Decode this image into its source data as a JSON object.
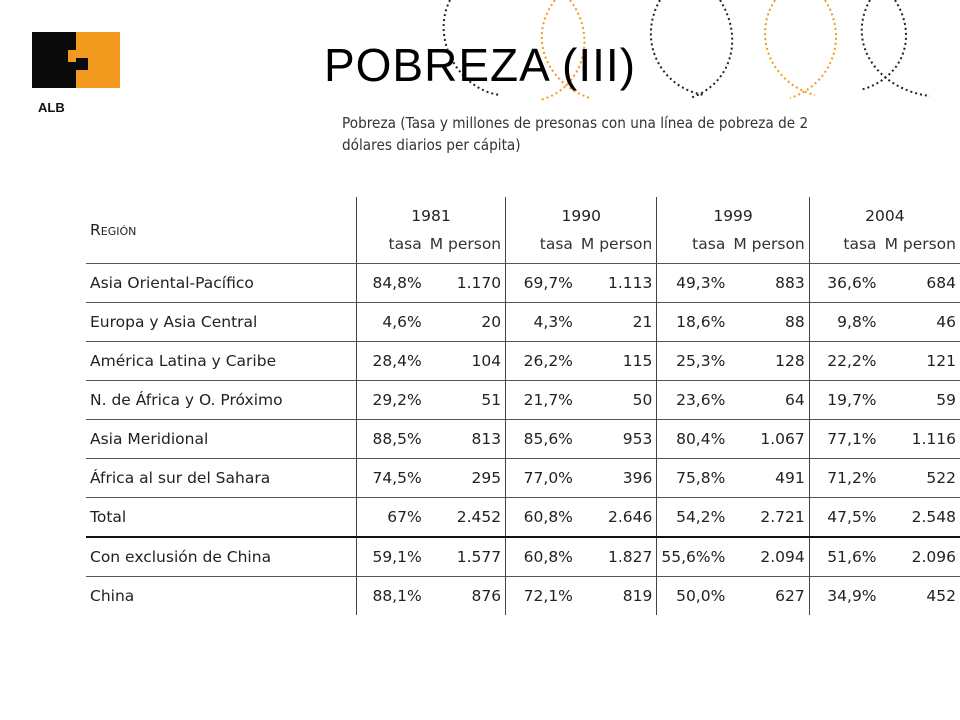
{
  "logo": {
    "label": "ALB",
    "colors": {
      "dark": "#0a0a0a",
      "accent": "#f29a1e"
    }
  },
  "title": "POBREZA (III)",
  "table_caption": "Pobreza (Tasa y millones de presonas con una línea de pobreza de 2 dólares diarios per cápita)",
  "table": {
    "region_header": "Región",
    "years": [
      "1981",
      "1990",
      "1999",
      "2004"
    ],
    "sub_headers": [
      "tasa",
      "M person"
    ],
    "rows": [
      {
        "region": "Asia Oriental-Pacífico",
        "values": [
          "84,8%",
          "1.170",
          "69,7%",
          "1.113",
          "49,3%",
          "883",
          "36,6%",
          "684"
        ]
      },
      {
        "region": "Europa y Asia Central",
        "values": [
          "4,6%",
          "20",
          "4,3%",
          "21",
          "18,6%",
          "88",
          "9,8%",
          "46"
        ]
      },
      {
        "region": "América Latina y Caribe",
        "values": [
          "28,4%",
          "104",
          "26,2%",
          "115",
          "25,3%",
          "128",
          "22,2%",
          "121"
        ]
      },
      {
        "region": "N. de África y O. Próximo",
        "values": [
          "29,2%",
          "51",
          "21,7%",
          "50",
          "23,6%",
          "64",
          "19,7%",
          "59"
        ]
      },
      {
        "region": "Asia Meridional",
        "values": [
          "88,5%",
          "813",
          "85,6%",
          "953",
          "80,4%",
          "1.067",
          "77,1%",
          "1.116"
        ]
      },
      {
        "region": "África al sur del Sahara",
        "values": [
          "74,5%",
          "295",
          "77,0%",
          "396",
          "75,8%",
          "491",
          "71,2%",
          "522"
        ]
      },
      {
        "region": "Total",
        "values": [
          "67%",
          "2.452",
          "60,8%",
          "2.646",
          "54,2%",
          "2.721",
          "47,5%",
          "2.548"
        ]
      },
      {
        "region": "Con exclusión de China",
        "values": [
          "59,1%",
          "1.577",
          "60,8%",
          "1.827",
          "55,6%%",
          "2.094",
          "51,6%",
          "2.096"
        ]
      },
      {
        "region": "China",
        "values": [
          "88,1%",
          "876",
          "72,1%",
          "819",
          "50,0%",
          "627",
          "34,9%",
          "452"
        ]
      }
    ]
  }
}
